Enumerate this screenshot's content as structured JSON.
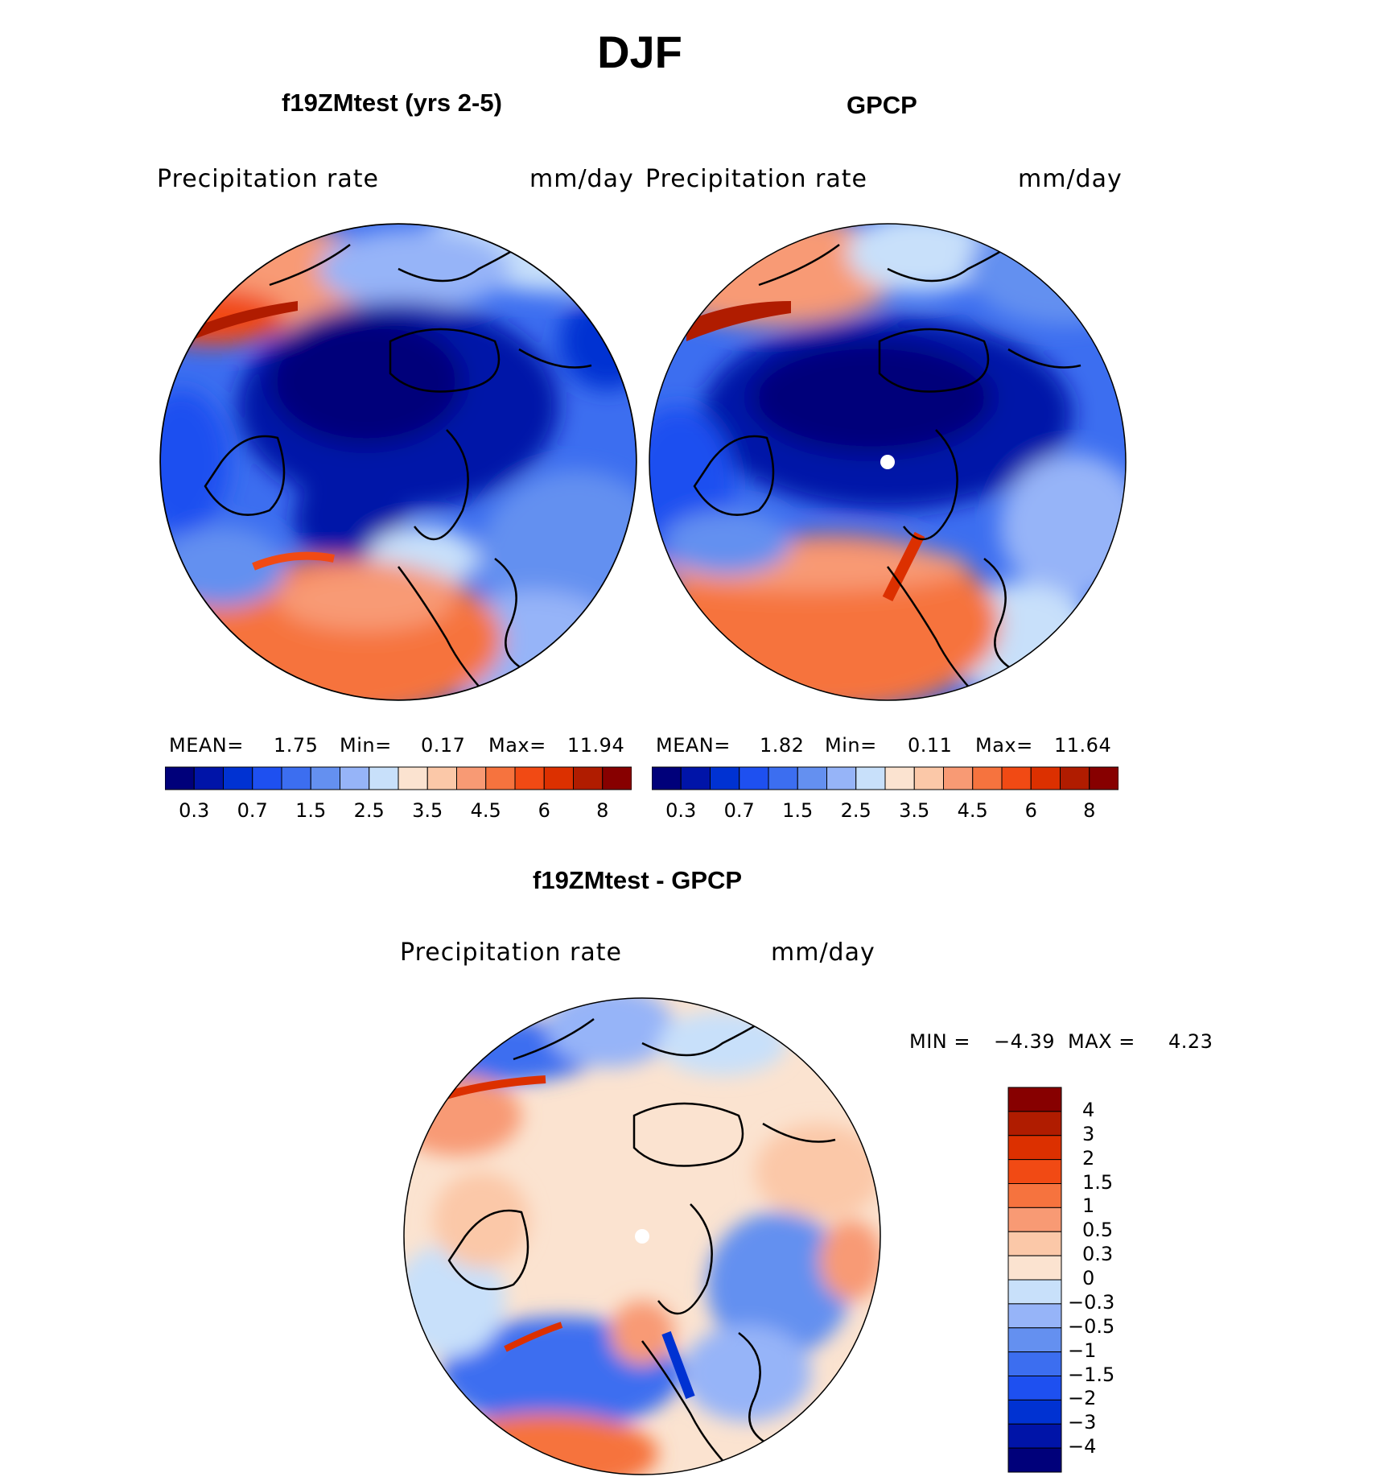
{
  "figure_title": "DJF",
  "panels": {
    "model": {
      "title": "f19ZMtest (yrs 2-5)",
      "variable": "Precipitation  rate",
      "units": "mm/day"
    },
    "obs": {
      "title": "GPCP",
      "variable": "Precipitation  rate",
      "units": "mm/day"
    },
    "diff": {
      "title": "f19ZMtest - GPCP",
      "variable": "Precipitation  rate",
      "units": "mm/day"
    }
  },
  "stats": {
    "model": {
      "mean_label": "MEAN=",
      "mean": "1.75",
      "min_label": "Min=",
      "min": "0.17",
      "max_label": "Max=",
      "max": "11.94"
    },
    "obs": {
      "mean_label": "MEAN=",
      "mean": "1.82",
      "min_label": "Min=",
      "min": "0.11",
      "max_label": "Max=",
      "max": "11.64"
    },
    "diff": {
      "min_label": "MIN =",
      "min": "−4.39",
      "max_label": "MAX =",
      "max": "4.23"
    }
  },
  "chart_data": [
    {
      "type": "heatmap",
      "title": "f19ZMtest (yrs 2-5)",
      "projection": "north polar stereographic",
      "variable": "Precipitation rate",
      "units": "mm/day",
      "mean": 1.75,
      "min": 0.17,
      "max": 11.94,
      "colorbar_levels": [
        0.2,
        0.3,
        0.5,
        0.7,
        1,
        1.5,
        2,
        2.5,
        3,
        3.5,
        4,
        4.5,
        5,
        6,
        7,
        8
      ],
      "colorbar_tick_labels": [
        "0.3",
        "0.7",
        "1.5",
        "2.5",
        "3.5",
        "4.5",
        "6",
        "8"
      ]
    },
    {
      "type": "heatmap",
      "title": "GPCP",
      "projection": "north polar stereographic",
      "variable": "Precipitation rate",
      "units": "mm/day",
      "mean": 1.82,
      "min": 0.11,
      "max": 11.64,
      "colorbar_levels": [
        0.2,
        0.3,
        0.5,
        0.7,
        1,
        1.5,
        2,
        2.5,
        3,
        3.5,
        4,
        4.5,
        5,
        6,
        7,
        8
      ],
      "colorbar_tick_labels": [
        "0.3",
        "0.7",
        "1.5",
        "2.5",
        "3.5",
        "4.5",
        "6",
        "8"
      ]
    },
    {
      "type": "heatmap",
      "title": "f19ZMtest - GPCP",
      "projection": "north polar stereographic",
      "variable": "Precipitation rate",
      "units": "mm/day",
      "min": -4.39,
      "max": 4.23,
      "colorbar_tick_labels": [
        "4",
        "3",
        "2",
        "1.5",
        "1",
        "0.5",
        "0.3",
        "0",
        "−0.3",
        "−0.5",
        "−1",
        "−1.5",
        "−2",
        "−3",
        "−4"
      ]
    }
  ],
  "colors": {
    "precip_scale": [
      "#00007a",
      "#0014a8",
      "#0032d2",
      "#1e50f0",
      "#3c6ef0",
      "#6490f0",
      "#96b4f8",
      "#c8e0fa",
      "#fbe3d0",
      "#fbc8a8",
      "#f89a74",
      "#f6733e",
      "#f14a14",
      "#dc3000",
      "#b01c00",
      "#870000"
    ],
    "diff_scale": [
      "#870000",
      "#b01c00",
      "#dc3000",
      "#f14a14",
      "#f6733e",
      "#f89a74",
      "#fbc8a8",
      "#fbe3d0",
      "#c8e0fa",
      "#96b4f8",
      "#6490f0",
      "#3c6ef0",
      "#1e50f0",
      "#0032d2",
      "#0014a8",
      "#00007a"
    ]
  }
}
